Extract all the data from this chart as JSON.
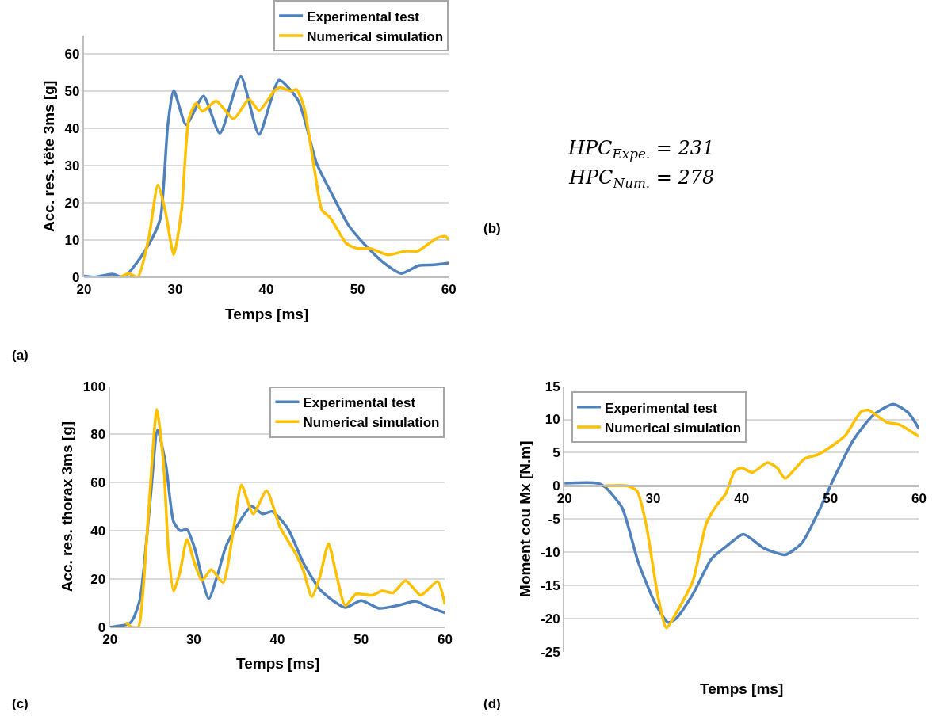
{
  "chart_data": [
    {
      "type": "line",
      "xlabel": "Temps [ms]",
      "ylabel": "Acc. res. tête 3ms [g]",
      "annotations": [
        "(a)"
      ],
      "xlim": [
        20,
        60
      ],
      "xticks": [
        20,
        30,
        40,
        50,
        60
      ],
      "ylim": [
        0,
        65
      ],
      "yticks": [
        0,
        10,
        20,
        30,
        40,
        50,
        60
      ],
      "grid": "y",
      "legend": "top right",
      "series": [
        {
          "name": "Experimental test",
          "color": "#4f81bd",
          "x": [
            20,
            21.2,
            23.1,
            24.4,
            26.1,
            27.5,
            28.4,
            29.2,
            29.85,
            31.2,
            33.1,
            34.9,
            37.2,
            39.2,
            41.4,
            43.5,
            45.5,
            47.2,
            49,
            50.4,
            52.7,
            54.8,
            56.7,
            58.4,
            60
          ],
          "values": [
            0.3,
            0,
            0.8,
            0,
            4.9,
            10.5,
            16,
            41,
            50.2,
            41,
            48.7,
            38.7,
            54,
            38.4,
            53,
            47.5,
            30.7,
            22.3,
            14,
            9.8,
            4.2,
            1,
            3.1,
            3.3,
            3.8
          ]
        },
        {
          "name": "Numerical simulation",
          "color": "#ffc000",
          "x": [
            24,
            24.9,
            25.9,
            27.1,
            28.1,
            28.9,
            29.85,
            30.7,
            31.5,
            32.3,
            33,
            34.5,
            36.4,
            38.1,
            39.2,
            40.9,
            41.5,
            42.7,
            43.3,
            44.1,
            45.3,
            46.1,
            47,
            48.8,
            50,
            51.4,
            53.3,
            55.3,
            56.6,
            58.7,
            59.6,
            60
          ],
          "values": [
            0,
            1,
            0,
            10.5,
            24.8,
            18,
            6,
            18,
            42.6,
            46.8,
            44.6,
            47.4,
            42.6,
            47.8,
            44.8,
            50.2,
            51,
            50.1,
            50.5,
            46,
            28.6,
            18,
            16,
            9,
            7.7,
            7.7,
            6,
            7,
            7,
            10.5,
            11,
            10.1
          ]
        }
      ]
    },
    {
      "type": "other",
      "annotations": [
        "HPC$_{Expe.}$ = 231",
        "HPC$_{Num.}$ = 278",
        "(b)"
      ]
    },
    {
      "type": "line",
      "xlabel": "Temps [ms]",
      "ylabel": "Acc. res. thorax 3ms [g]",
      "annotations": [
        "(c)"
      ],
      "xlim": [
        20,
        60
      ],
      "xticks": [
        20,
        30,
        40,
        50,
        60
      ],
      "ylim": [
        0,
        100
      ],
      "yticks": [
        0,
        20,
        40,
        60,
        80,
        100
      ],
      "grid": "y",
      "legend": "top right",
      "series": [
        {
          "name": "Experimental test",
          "color": "#4f81bd",
          "x": [
            20,
            22.3,
            22.8,
            23.6,
            24.8,
            25.7,
            26.7,
            27.6,
            28.4,
            29.2,
            30.1,
            31.8,
            32.9,
            33.8,
            35.1,
            36.9,
            38.2,
            39.4,
            41.3,
            43.1,
            45,
            46.6,
            48.1,
            50,
            52.1,
            54.3,
            56.5,
            58,
            60
          ],
          "values": [
            0,
            1.4,
            3.5,
            11.6,
            52,
            81.8,
            67,
            43.7,
            40,
            40.5,
            33,
            11.8,
            22.3,
            33,
            41.6,
            50.2,
            47,
            48,
            40.5,
            26.6,
            15.9,
            11,
            8.1,
            11,
            7.8,
            8.9,
            10.7,
            8.4,
            5.9
          ]
        },
        {
          "name": "Numerical simulation",
          "color": "#ffc000",
          "x": [
            21.9,
            22.6,
            23.4,
            23.9,
            24.7,
            25.6,
            26.4,
            27,
            27.6,
            28.4,
            29.2,
            30.1,
            31,
            32.1,
            33.5,
            34.8,
            35.7,
            37.1,
            38.7,
            40.3,
            42.2,
            43.1,
            44.1,
            45,
            46.1,
            47,
            48.1,
            49.4,
            51.3,
            52.5,
            53.8,
            55.3,
            57.1,
            59.1,
            60
          ],
          "values": [
            1.9,
            0,
            0,
            12.6,
            52,
            90.4,
            68,
            30.9,
            14.8,
            23.4,
            36.4,
            26.6,
            19.3,
            23.9,
            18.5,
            41.6,
            59,
            47,
            56.6,
            41.6,
            30.3,
            23.4,
            12.6,
            20.1,
            34.6,
            22.3,
            8.9,
            13.7,
            13.2,
            15,
            14.2,
            19.3,
            13.2,
            18.9,
            9.4
          ]
        }
      ]
    },
    {
      "type": "line",
      "xlabel": "Temps [ms]",
      "ylabel": "Moment cou Mx [N.m]",
      "annotations": [
        "(d)"
      ],
      "xlim": [
        20,
        60
      ],
      "xticks": [
        20,
        30,
        40,
        50,
        60
      ],
      "ylim": [
        -25,
        15
      ],
      "yticks": [
        -25,
        -20,
        -15,
        -10,
        -5,
        0,
        5,
        10,
        15
      ],
      "grid": "y",
      "legend": "top left",
      "series": [
        {
          "name": "Experimental test",
          "color": "#4f81bd",
          "x": [
            20,
            23.7,
            24.6,
            26.5,
            28.3,
            30.2,
            31.7,
            32.6,
            34.5,
            36.6,
            38.2,
            40.2,
            42.5,
            44.9,
            46.8,
            48.6,
            50.5,
            52.6,
            54.8,
            57.1,
            58.8,
            60
          ],
          "values": [
            0.4,
            0.4,
            -0.2,
            -3.3,
            -11.4,
            -17.6,
            -20.6,
            -20,
            -16.3,
            -11,
            -9.2,
            -7.3,
            -9.4,
            -10.4,
            -8.6,
            -4.1,
            1.4,
            6.9,
            10.6,
            12.3,
            11,
            8.6
          ]
        },
        {
          "name": "Numerical simulation",
          "color": "#ffc000",
          "x": [
            24.5,
            27.1,
            28.2,
            29.2,
            30.5,
            31.5,
            32.6,
            34.5,
            36,
            37.2,
            38.2,
            39.2,
            40,
            41.2,
            42.9,
            44,
            44.9,
            47.1,
            48.6,
            50.5,
            51.7,
            53.5,
            54.3,
            56.3,
            57.8,
            60
          ],
          "values": [
            0,
            0,
            -0.8,
            -5.7,
            -16.3,
            -21.4,
            -19.2,
            -14.3,
            -5.7,
            -2.9,
            -1.2,
            2.2,
            2.7,
            2,
            3.5,
            2.7,
            1.1,
            4.1,
            4.7,
            6.3,
            7.6,
            11.2,
            11.4,
            9.6,
            9.2,
            7.4
          ]
        }
      ]
    }
  ]
}
